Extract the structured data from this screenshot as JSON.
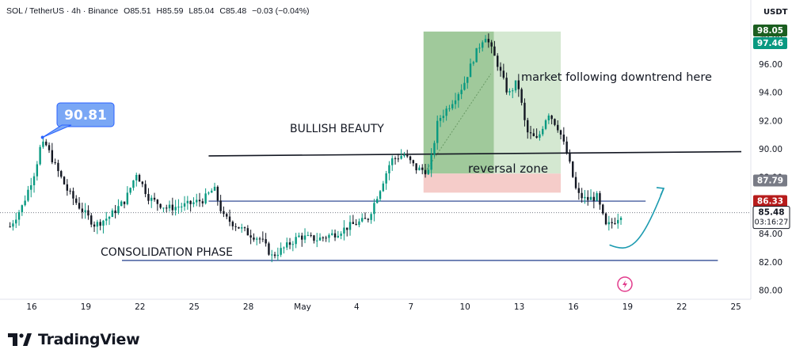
{
  "header": {
    "symbol": "SOL / TetherUS · 4h · Binance",
    "open": "O85.51",
    "high": "H85.59",
    "low": "L85.04",
    "close": "C85.48",
    "change": "−0.03 (−0.04%)"
  },
  "currency": "USDT",
  "footer": {
    "brand": "TradingView",
    "logo_icon": "tradingview-logo-icon"
  },
  "colors": {
    "up": "#089981",
    "down": "#131722",
    "accent": "#2962ff",
    "long_zone": "#8fbf8a",
    "loss_zone": "#f4c7c3",
    "curve": "#1c9bb0"
  },
  "chart_data": {
    "type": "candlestick",
    "title": "",
    "ylim": [
      80.0,
      99.5
    ],
    "y_ticks": [
      80.0,
      82.0,
      84.0,
      86.0,
      88.0,
      90.0,
      92.0,
      94.0,
      96.0,
      98.0
    ],
    "y_tick_labels": [
      "80.00",
      "82.00",
      "84.00",
      "86.00",
      "88.00",
      "90.00",
      "92.00",
      "94.00",
      "96.00",
      "98.00"
    ],
    "x_ticks": [
      {
        "label": "16",
        "day": 16
      },
      {
        "label": "19",
        "day": 19
      },
      {
        "label": "22",
        "day": 22
      },
      {
        "label": "25",
        "day": 25
      },
      {
        "label": "28",
        "day": 28
      },
      {
        "label": "May",
        "day": 31
      },
      {
        "label": "4",
        "day": 34
      },
      {
        "label": "7",
        "day": 37
      },
      {
        "label": "10",
        "day": 40
      },
      {
        "label": "13",
        "day": 43
      },
      {
        "label": "16",
        "day": 46
      },
      {
        "label": "19",
        "day": 49
      },
      {
        "label": "22",
        "day": 52
      },
      {
        "label": "25",
        "day": 55
      }
    ],
    "price_waypoints": [
      [
        14.8,
        84.5
      ],
      [
        15.5,
        86.0
      ],
      [
        16.2,
        88.5
      ],
      [
        16.6,
        90.81
      ],
      [
        17.3,
        88.8
      ],
      [
        18.0,
        87.0
      ],
      [
        18.7,
        85.8
      ],
      [
        19.5,
        84.6
      ],
      [
        20.3,
        85.2
      ],
      [
        21.2,
        86.4
      ],
      [
        21.8,
        88.3
      ],
      [
        22.5,
        86.5
      ],
      [
        23.5,
        85.8
      ],
      [
        24.5,
        86.0
      ],
      [
        25.5,
        86.4
      ],
      [
        26.1,
        87.2
      ],
      [
        26.6,
        85.2
      ],
      [
        27.3,
        84.6
      ],
      [
        28.0,
        84.0
      ],
      [
        28.7,
        83.6
      ],
      [
        29.3,
        82.4
      ],
      [
        30.0,
        83.0
      ],
      [
        30.8,
        83.8
      ],
      [
        31.8,
        83.6
      ],
      [
        32.8,
        84.0
      ],
      [
        33.7,
        84.6
      ],
      [
        34.6,
        85.0
      ],
      [
        35.3,
        87.2
      ],
      [
        35.9,
        89.2
      ],
      [
        36.6,
        89.6
      ],
      [
        37.3,
        88.6
      ],
      [
        38.0,
        88.4
      ],
      [
        38.5,
        92.0
      ],
      [
        39.2,
        93.2
      ],
      [
        39.9,
        94.5
      ],
      [
        40.5,
        96.5
      ],
      [
        41.1,
        98.1
      ],
      [
        41.8,
        96.0
      ],
      [
        42.4,
        93.8
      ],
      [
        42.9,
        94.8
      ],
      [
        43.4,
        91.2
      ],
      [
        44.0,
        90.6
      ],
      [
        44.6,
        92.6
      ],
      [
        45.2,
        91.4
      ],
      [
        45.7,
        89.4
      ],
      [
        46.2,
        86.8
      ],
      [
        46.7,
        86.4
      ],
      [
        47.3,
        86.6
      ],
      [
        47.8,
        84.5
      ],
      [
        48.2,
        84.8
      ],
      [
        48.7,
        85.48
      ]
    ],
    "current_price": {
      "value": 85.48,
      "label": "85.48",
      "countdown": "03:16:27"
    },
    "price_badges": [
      {
        "value": 98.05,
        "label": "98.05",
        "color": "#1b5e20"
      },
      {
        "value": 97.46,
        "label": "97.46",
        "color": "#089981"
      },
      {
        "value": 87.79,
        "label": "87.79",
        "color": "#787b86"
      },
      {
        "value": 86.33,
        "label": "86.33",
        "color": "#b71c1c"
      }
    ],
    "annotations": {
      "high_label": {
        "text": "90.81",
        "day": 16.6,
        "value": 90.81
      },
      "bullish": "BULLISH BEAUTY",
      "consolidation": "CONSOLIDATION PHASE",
      "downtrend": "market following downtrend here",
      "reversal": "reversal zone"
    },
    "horizontal_lines": [
      {
        "from_day": 25.8,
        "to_day": 55.3,
        "y1": 89.5,
        "y2": 89.8,
        "color": "#131722"
      },
      {
        "from_day": 25.8,
        "to_day": 50.0,
        "y1": 86.3,
        "y2": 86.3,
        "color": "#1e3a8a"
      },
      {
        "from_day": 21.0,
        "to_day": 54.0,
        "y1": 82.1,
        "y2": 82.1,
        "color": "#1e3a8a"
      }
    ],
    "long_position": {
      "start_day": 37.7,
      "end_day": 45.3,
      "entry": 88.25,
      "target": 98.3,
      "stop": 86.9,
      "split_day": 41.6
    },
    "projection_curve": {
      "start_day": 48.0,
      "start_value": 83.2,
      "end_day": 51.0,
      "end_value": 87.2
    }
  }
}
